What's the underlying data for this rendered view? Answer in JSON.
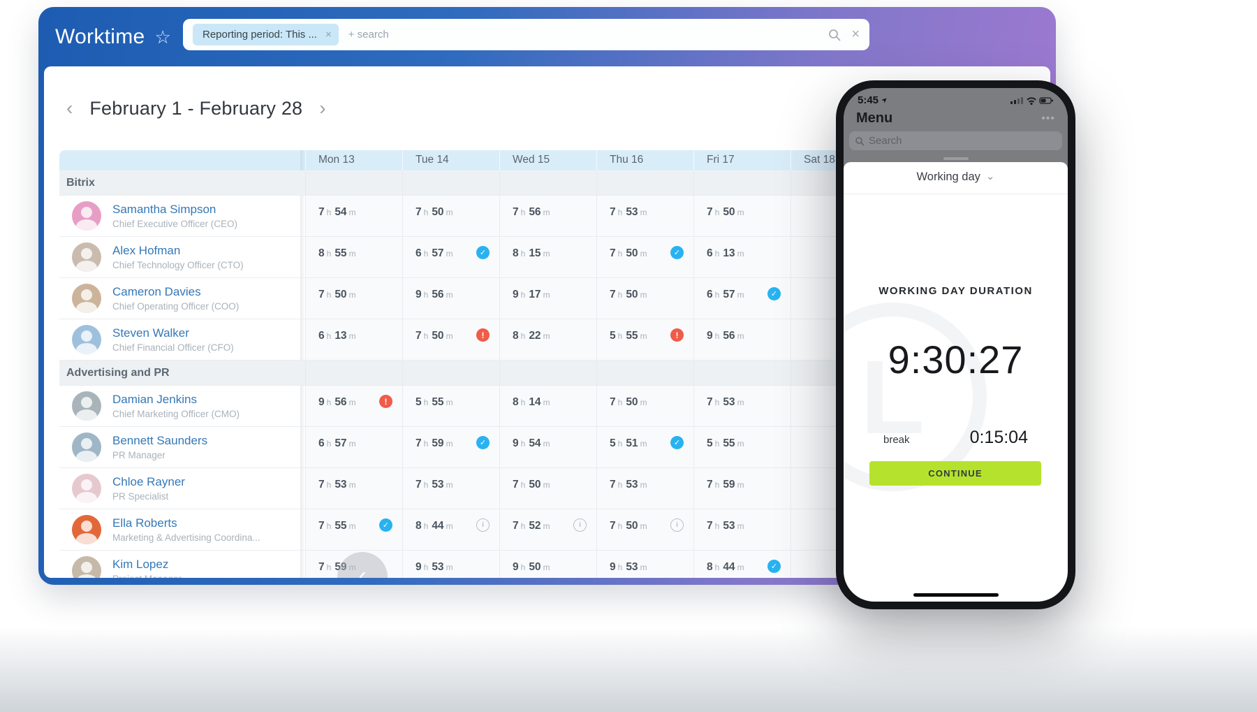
{
  "app": {
    "title": "Worktime",
    "filter_chip": "Reporting period: This ...",
    "search_placeholder": "+ search"
  },
  "period": {
    "label": "February 1 - February 28"
  },
  "icons": {
    "check": "✓",
    "warning": "!",
    "info": "i",
    "star": "☆",
    "chip_close": "×",
    "clear": "×",
    "prev": "‹",
    "next": "›",
    "scroll_left": "‹",
    "more": "•••",
    "chevron_down": "⌄"
  },
  "colors": {
    "brand_blue": "#1d5cb2",
    "brand_purple": "#a57ad2",
    "header_band": "#d9edf9",
    "link_blue": "#3478b6",
    "check_blue": "#29b2f0",
    "warn_red": "#f15b4a",
    "continue_green": "#b5e32d"
  },
  "table": {
    "day_headers": [
      "Mon 13",
      "Tue 14",
      "Wed 15",
      "Thu 16",
      "Fri 17",
      "Sat 18"
    ],
    "unit_hours": "h",
    "unit_minutes": "m",
    "groups": [
      {
        "name": "Bitrix",
        "rows": [
          {
            "name": "Samantha Simpson",
            "title": "Chief Executive Officer (CEO)",
            "avatar_color": "#e79ec4",
            "cells": [
              {
                "h": "7",
                "m": "54"
              },
              {
                "h": "7",
                "m": "50"
              },
              {
                "h": "7",
                "m": "56"
              },
              {
                "h": "7",
                "m": "53"
              },
              {
                "h": "7",
                "m": "50"
              },
              {}
            ]
          },
          {
            "name": "Alex Hofman",
            "title": "Chief Technology Officer (CTO)",
            "avatar_color": "#c9bcae",
            "cells": [
              {
                "h": "8",
                "m": "55"
              },
              {
                "h": "6",
                "m": "57",
                "icon": "check"
              },
              {
                "h": "8",
                "m": "15"
              },
              {
                "h": "7",
                "m": "50",
                "icon": "check"
              },
              {
                "h": "6",
                "m": "13"
              },
              {}
            ]
          },
          {
            "name": "Cameron Davies",
            "title": "Chief Operating Officer (COO)",
            "avatar_color": "#cbb49a",
            "cells": [
              {
                "h": "7",
                "m": "50"
              },
              {
                "h": "9",
                "m": "56"
              },
              {
                "h": "9",
                "m": "17"
              },
              {
                "h": "7",
                "m": "50"
              },
              {
                "h": "6",
                "m": "57",
                "icon": "check"
              },
              {}
            ]
          },
          {
            "name": "Steven Walker",
            "title": "Chief Financial Officer (CFO)",
            "avatar_color": "#9fc0dd",
            "cells": [
              {
                "h": "6",
                "m": "13"
              },
              {
                "h": "7",
                "m": "50",
                "icon": "warning"
              },
              {
                "h": "8",
                "m": "22"
              },
              {
                "h": "5",
                "m": "55",
                "icon": "warning"
              },
              {
                "h": "9",
                "m": "56"
              },
              {}
            ]
          }
        ]
      },
      {
        "name": "Advertising and PR",
        "rows": [
          {
            "name": "Damian Jenkins",
            "title": "Chief Marketing Officer (CMO)",
            "avatar_color": "#a9b4ba",
            "cells": [
              {
                "h": "9",
                "m": "56",
                "icon": "warning"
              },
              {
                "h": "5",
                "m": "55"
              },
              {
                "h": "8",
                "m": "14"
              },
              {
                "h": "7",
                "m": "50"
              },
              {
                "h": "7",
                "m": "53"
              },
              {}
            ]
          },
          {
            "name": "Bennett Saunders",
            "title": "PR Manager",
            "avatar_color": "#9fb6c6",
            "cells": [
              {
                "h": "6",
                "m": "57"
              },
              {
                "h": "7",
                "m": "59",
                "icon": "check"
              },
              {
                "h": "9",
                "m": "54"
              },
              {
                "h": "5",
                "m": "51",
                "icon": "check"
              },
              {
                "h": "5",
                "m": "55"
              },
              {}
            ]
          },
          {
            "name": "Chloe Rayner",
            "title": "PR Specialist",
            "avatar_color": "#e6c9cf",
            "cells": [
              {
                "h": "7",
                "m": "53"
              },
              {
                "h": "7",
                "m": "53"
              },
              {
                "h": "7",
                "m": "50"
              },
              {
                "h": "7",
                "m": "53"
              },
              {
                "h": "7",
                "m": "59"
              },
              {}
            ]
          },
          {
            "name": "Ella Roberts",
            "title": "Marketing & Advertising Coordina...",
            "avatar_color": "#e2683a",
            "cells": [
              {
                "h": "7",
                "m": "55",
                "icon": "check"
              },
              {
                "h": "8",
                "m": "44",
                "icon": "info"
              },
              {
                "h": "7",
                "m": "52",
                "icon": "info"
              },
              {
                "h": "7",
                "m": "50",
                "icon": "info"
              },
              {
                "h": "7",
                "m": "53"
              },
              {}
            ]
          },
          {
            "name": "Kim Lopez",
            "title": "Project Manager",
            "avatar_color": "#c7b9a8",
            "cells": [
              {
                "h": "7",
                "m": "59"
              },
              {
                "h": "9",
                "m": "53"
              },
              {
                "h": "9",
                "m": "50"
              },
              {
                "h": "9",
                "m": "53"
              },
              {
                "h": "8",
                "m": "44",
                "icon": "check"
              },
              {}
            ]
          }
        ]
      }
    ]
  },
  "phone": {
    "status_time": "5:45",
    "menu_title": "Menu",
    "search_placeholder": "Search",
    "sheet_title": "Working day",
    "duration_label": "WORKING DAY DURATION",
    "duration": "9:30:27",
    "break_label": "break",
    "break_value": "0:15:04",
    "continue_label": "CONTINUE"
  }
}
